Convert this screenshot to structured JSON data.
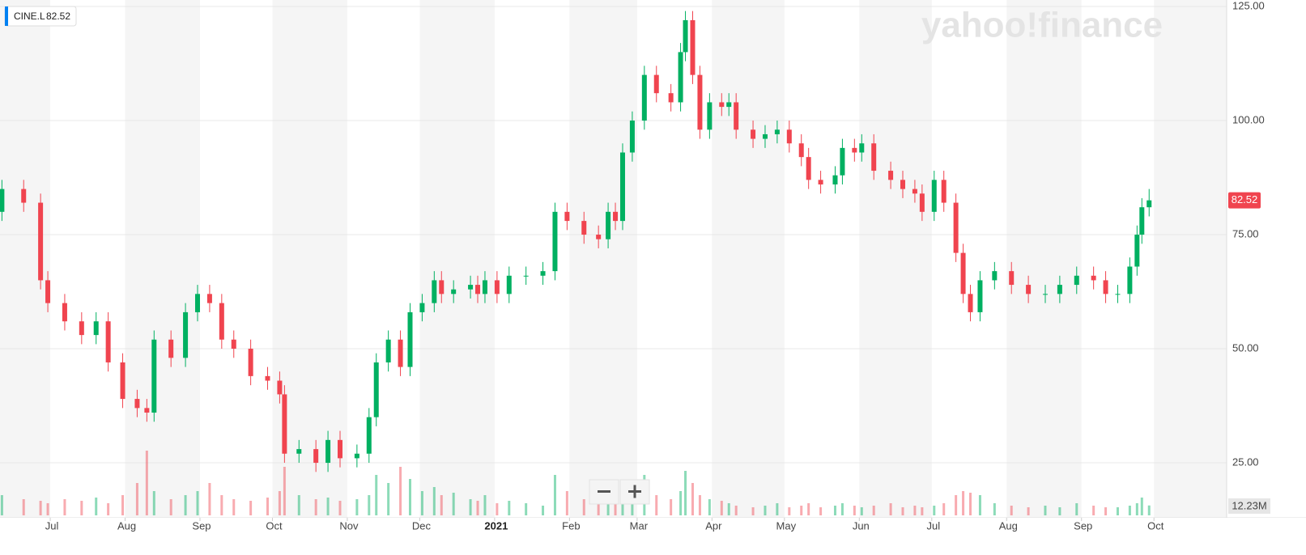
{
  "chart_data": {
    "type": "candlestick",
    "ticker": "CINE.L",
    "watermark": "yahoo!finance",
    "x": [
      -20,
      -11,
      -4,
      -1,
      6,
      13,
      19,
      24,
      30,
      36,
      40,
      43,
      50,
      56,
      61,
      66,
      71,
      76,
      83,
      90,
      95,
      97,
      103,
      110,
      115,
      120,
      127,
      132,
      135,
      140,
      145,
      149,
      154,
      159,
      162,
      167,
      174,
      177,
      180,
      185,
      190,
      197,
      204,
      209,
      214,
      221,
      227,
      231,
      234,
      237,
      241,
      246,
      251,
      257,
      261,
      263,
      266,
      269,
      273,
      278,
      281,
      284,
      291,
      296,
      301,
      306,
      311,
      314,
      319,
      325,
      328,
      333,
      336,
      341,
      348,
      353,
      358,
      361,
      366,
      370,
      375,
      378,
      381,
      385,
      391,
      398,
      405,
      412,
      418,
      425,
      432,
      437,
      442,
      447,
      450,
      452,
      455
    ],
    "open": [
      80,
      85,
      82,
      65,
      60,
      56,
      53,
      56,
      47,
      39,
      37,
      36,
      52,
      48,
      58,
      62,
      60,
      52,
      50,
      44,
      43,
      40,
      27,
      28,
      25,
      30,
      26,
      27,
      35,
      47,
      52,
      46,
      58,
      60,
      65,
      62,
      63,
      64,
      62,
      65,
      62,
      66,
      66,
      67,
      80,
      78,
      75,
      74,
      80,
      78,
      93,
      100,
      110,
      106,
      104,
      115,
      122,
      110,
      98,
      104,
      103,
      104,
      98,
      96,
      97,
      98,
      95,
      92,
      87,
      86,
      88,
      94,
      93,
      95,
      89,
      87,
      85,
      84,
      80,
      87,
      82,
      71,
      62,
      58,
      65,
      67,
      64,
      62,
      62,
      64,
      66,
      65,
      62,
      62,
      68,
      75,
      81
    ],
    "high": [
      87,
      87,
      84,
      67,
      62,
      58,
      58,
      58,
      49,
      41,
      39,
      54,
      54,
      60,
      64,
      64,
      62,
      54,
      52,
      46,
      45,
      42,
      30,
      30,
      32,
      32,
      29,
      37,
      49,
      54,
      54,
      60,
      62,
      67,
      67,
      65,
      66,
      66,
      67,
      67,
      68,
      68,
      69,
      82,
      82,
      80,
      77,
      82,
      82,
      95,
      102,
      112,
      112,
      108,
      117,
      124,
      124,
      112,
      106,
      106,
      106,
      106,
      100,
      99,
      100,
      100,
      97,
      94,
      89,
      90,
      96,
      96,
      97,
      97,
      91,
      89,
      87,
      86,
      89,
      89,
      84,
      73,
      64,
      67,
      69,
      69,
      66,
      64,
      66,
      68,
      68,
      67,
      64,
      70,
      77,
      83,
      85
    ],
    "low": [
      78,
      80,
      63,
      58,
      54,
      51,
      51,
      45,
      37,
      35,
      34,
      34,
      46,
      46,
      56,
      58,
      50,
      48,
      42,
      41,
      38,
      25,
      25,
      23,
      23,
      24,
      24,
      25,
      33,
      45,
      44,
      44,
      56,
      58,
      60,
      60,
      61,
      60,
      60,
      60,
      60,
      64,
      64,
      65,
      76,
      73,
      72,
      72,
      76,
      76,
      91,
      98,
      104,
      102,
      102,
      113,
      108,
      96,
      96,
      101,
      101,
      96,
      94,
      94,
      95,
      93,
      90,
      85,
      84,
      84,
      86,
      91,
      91,
      87,
      85,
      83,
      82,
      78,
      78,
      80,
      69,
      60,
      56,
      56,
      63,
      62,
      60,
      60,
      60,
      62,
      63,
      60,
      60,
      60,
      66,
      73,
      79
    ],
    "close": [
      85,
      82,
      65,
      60,
      56,
      53,
      56,
      47,
      39,
      37,
      36,
      52,
      48,
      58,
      62,
      60,
      52,
      50,
      44,
      43,
      40,
      27,
      28,
      25,
      30,
      26,
      27,
      35,
      47,
      52,
      46,
      58,
      60,
      65,
      62,
      63,
      64,
      62,
      65,
      62,
      66,
      66,
      67,
      80,
      78,
      75,
      74,
      80,
      78,
      93,
      100,
      110,
      106,
      104,
      115,
      122,
      110,
      98,
      104,
      103,
      104,
      98,
      96,
      97,
      98,
      95,
      92,
      87,
      86,
      88,
      94,
      93,
      95,
      89,
      87,
      85,
      84,
      80,
      87,
      82,
      71,
      62,
      58,
      65,
      67,
      64,
      62,
      62,
      64,
      66,
      65,
      62,
      62,
      68,
      75,
      81,
      82.52
    ],
    "volume": [
      25,
      20,
      18,
      15,
      20,
      18,
      22,
      15,
      25,
      40,
      80,
      30,
      20,
      25,
      30,
      40,
      25,
      20,
      18,
      22,
      30,
      60,
      25,
      20,
      22,
      18,
      20,
      25,
      50,
      40,
      60,
      45,
      30,
      35,
      25,
      28,
      20,
      18,
      25,
      15,
      18,
      15,
      12,
      50,
      30,
      20,
      18,
      25,
      30,
      40,
      35,
      50,
      25,
      20,
      30,
      55,
      40,
      25,
      20,
      18,
      15,
      12,
      10,
      12,
      15,
      10,
      12,
      15,
      10,
      12,
      15,
      12,
      10,
      12,
      15,
      10,
      12,
      10,
      12,
      15,
      25,
      30,
      28,
      25,
      15,
      12,
      10,
      12,
      10,
      15,
      12,
      10,
      10,
      12,
      15,
      22,
      12.23
    ],
    "volume_last_label": "12.23M",
    "xlim": [
      -20.8,
      487.1
    ],
    "xticks": [
      {
        "value": 0,
        "label": "Jul"
      },
      {
        "value": 31,
        "label": "Aug"
      },
      {
        "value": 62,
        "label": "Sep"
      },
      {
        "value": 92,
        "label": "Oct"
      },
      {
        "value": 123,
        "label": "Nov"
      },
      {
        "value": 153,
        "label": "Dec"
      },
      {
        "value": 184,
        "label": "2021"
      },
      {
        "value": 215,
        "label": "Feb"
      },
      {
        "value": 243,
        "label": "Mar"
      },
      {
        "value": 274,
        "label": "Apr"
      },
      {
        "value": 304,
        "label": "May"
      },
      {
        "value": 335,
        "label": "Jun"
      },
      {
        "value": 365,
        "label": "Jul"
      },
      {
        "value": 396,
        "label": "Aug"
      },
      {
        "value": 427,
        "label": "Sep"
      },
      {
        "value": 457,
        "label": "Oct"
      }
    ],
    "ylim": [
      12.95,
      126.42
    ],
    "yticks": [
      {
        "value": 25,
        "label": "25.00"
      },
      {
        "value": 50,
        "label": "50.00"
      },
      {
        "value": 75,
        "label": "75.00"
      },
      {
        "value": 100,
        "label": "100.00"
      },
      {
        "value": 125,
        "label": "125.00"
      }
    ],
    "volume_lim": [
      0,
      100
    ],
    "up_color": "#00b061",
    "down_color": "#f0444f",
    "grid": true
  }
}
